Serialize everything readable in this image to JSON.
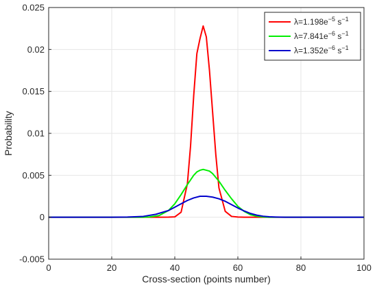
{
  "chart_data": {
    "type": "line",
    "title": "",
    "xlabel": "Cross-section (points number)",
    "ylabel": "Probability",
    "xlim": [
      0,
      100
    ],
    "ylim": [
      -0.005,
      0.025
    ],
    "x_ticks": [
      0,
      20,
      40,
      60,
      80,
      100
    ],
    "x_tick_labels": [
      "0",
      "20",
      "40",
      "60",
      "80",
      "100"
    ],
    "y_ticks": [
      -0.005,
      0,
      0.005,
      0.01,
      0.015,
      0.02,
      0.025
    ],
    "y_tick_labels": [
      "-0.005",
      "0",
      "0.005",
      "0.01",
      "0.015",
      "0.02",
      "0.025"
    ],
    "grid": true,
    "legend_position": "top-right",
    "series": [
      {
        "name": "λ=1.198e−5 s−1",
        "legend": {
          "prefix": "λ=1.198e",
          "exp1": "−5",
          "mid": " s",
          "exp2": "−1"
        },
        "color": "#ff0000",
        "x": [
          0,
          20,
          30,
          35,
          38,
          40,
          42,
          44,
          45,
          46,
          47,
          48,
          49,
          50,
          51,
          52,
          53,
          54,
          56,
          58,
          60,
          62,
          65,
          70,
          80,
          100
        ],
        "y": [
          0,
          0,
          0,
          0,
          1e-05,
          4e-05,
          0.0006,
          0.004,
          0.0085,
          0.0145,
          0.0195,
          0.0213,
          0.0228,
          0.0215,
          0.0175,
          0.0125,
          0.0075,
          0.0035,
          0.0007,
          0.0001,
          2e-05,
          0,
          0,
          0,
          0,
          0
        ]
      },
      {
        "name": "λ=7.841e−6 s−1",
        "legend": {
          "prefix": "λ=7.841e",
          "exp1": "−6",
          "mid": " s",
          "exp2": "−1"
        },
        "color": "#00ee00",
        "x": [
          0,
          20,
          30,
          32,
          35,
          38,
          40,
          42,
          44,
          46,
          47,
          48,
          49,
          50,
          51,
          52,
          54,
          56,
          58,
          60,
          62,
          64,
          66,
          68,
          70,
          75,
          80,
          100
        ],
        "y": [
          0,
          0,
          0,
          3e-05,
          0.0002,
          0.0008,
          0.0016,
          0.0027,
          0.0039,
          0.005,
          0.0054,
          0.0056,
          0.0057,
          0.0056,
          0.0055,
          0.0052,
          0.0043,
          0.0032,
          0.0022,
          0.0013,
          0.0007,
          0.0003,
          0.00012,
          3e-05,
          0,
          0,
          0,
          0
        ]
      },
      {
        "name": "λ=1.352e−6 s−1",
        "legend": {
          "prefix": "λ=1.352e",
          "exp1": "−6",
          "mid": " s",
          "exp2": "−1"
        },
        "color": "#0000cc",
        "x": [
          0,
          20,
          25,
          28,
          30,
          34,
          38,
          40,
          42,
          44,
          46,
          48,
          49,
          50,
          52,
          54,
          56,
          58,
          60,
          62,
          64,
          66,
          68,
          70,
          72,
          75,
          80,
          100
        ],
        "y": [
          0,
          0,
          2e-05,
          6e-05,
          0.0001,
          0.00035,
          0.0008,
          0.0012,
          0.0016,
          0.002,
          0.0023,
          0.0025,
          0.0025,
          0.0025,
          0.0024,
          0.0022,
          0.0019,
          0.0015,
          0.0011,
          0.00075,
          0.00045,
          0.00025,
          0.00012,
          5e-05,
          2e-05,
          0,
          0,
          0
        ]
      }
    ]
  }
}
